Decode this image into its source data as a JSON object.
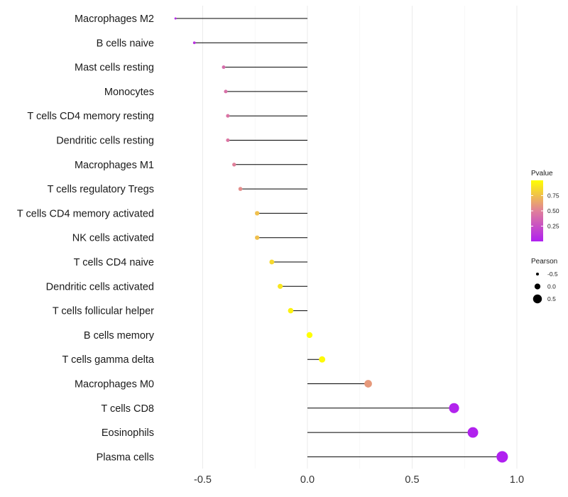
{
  "chart_data": {
    "type": "lollipop",
    "title": "",
    "xlabel": "",
    "ylabel": "",
    "xlim": [
      -0.72,
      1.02
    ],
    "x_ticks": [
      -0.5,
      0.0,
      0.5,
      1.0
    ],
    "x_tick_labels": [
      "-0.5",
      "0.0",
      "0.5",
      "1.0"
    ],
    "grid": true,
    "categories": [
      "Macrophages M2",
      "B cells naive",
      "Mast cells resting",
      "Monocytes",
      "T cells CD4 memory resting",
      "Dendritic cells resting",
      "Macrophages M1",
      "T cells regulatory  Tregs ",
      "T cells CD4 memory activated",
      "NK cells activated",
      "T cells CD4 naive",
      "Dendritic cells activated",
      "T cells follicular helper",
      "B cells memory",
      "T cells gamma delta",
      "Macrophages M0",
      "T cells CD8",
      "Eosinophils",
      "Plasma cells"
    ],
    "pearson": [
      -0.63,
      -0.54,
      -0.4,
      -0.39,
      -0.38,
      -0.38,
      -0.35,
      -0.32,
      -0.24,
      -0.24,
      -0.17,
      -0.13,
      -0.08,
      0.01,
      0.07,
      0.29,
      0.7,
      0.79,
      0.93
    ],
    "pvalue": [
      0.05,
      0.1,
      0.4,
      0.42,
      0.44,
      0.45,
      0.5,
      0.55,
      0.75,
      0.75,
      0.85,
      0.9,
      0.95,
      1.0,
      0.98,
      0.6,
      0.02,
      0.01,
      0.0
    ],
    "color_legend": {
      "title": "Pvalue",
      "ticks": [
        0.25,
        0.5,
        0.75
      ],
      "tick_labels": [
        "0.25",
        "0.50",
        "0.75"
      ],
      "low_color": "#B020F0",
      "mid_color": "#E0809A",
      "high_color": "#FFFF00"
    },
    "size_legend": {
      "title": "Pearson",
      "values": [
        -0.5,
        0.0,
        0.5
      ],
      "labels": [
        "-0.5",
        "0.0",
        "0.5"
      ]
    },
    "colors": {
      "grid": "#ebebeb",
      "segment": "#000000"
    }
  }
}
